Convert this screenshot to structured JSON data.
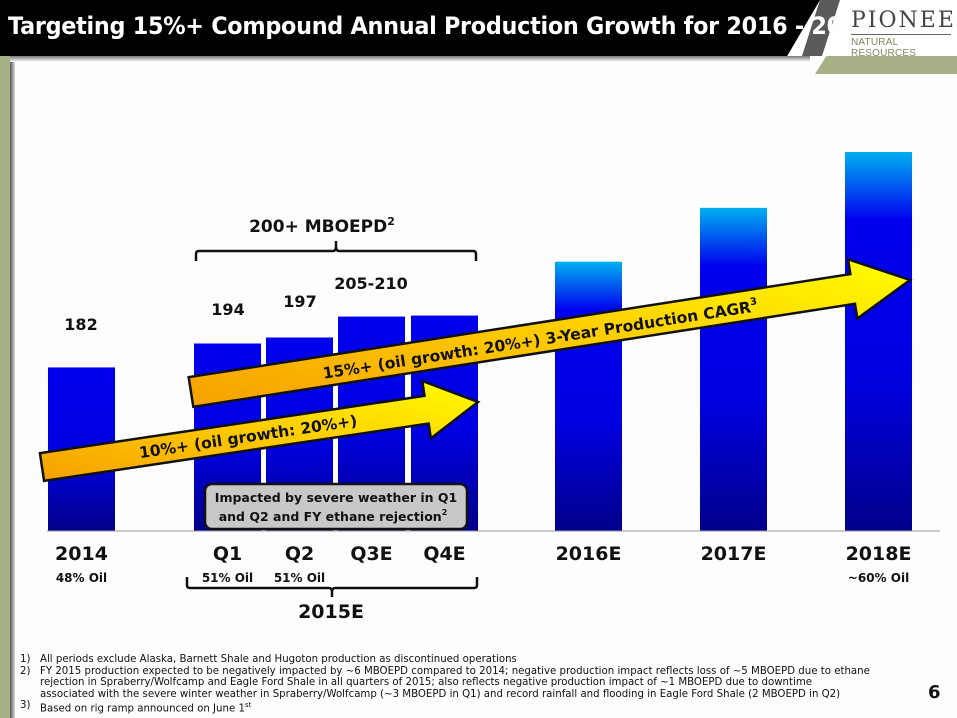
{
  "header": {
    "title": "Targeting 15%+ Compound Annual Production Growth for 2016 - 2018",
    "title_footnote": "1",
    "logo_main": "PIONEER",
    "logo_sub": "NATURAL RESOURCES"
  },
  "colors": {
    "bar_solid": "#0000ee",
    "bar_dark": "#00008a",
    "bar_light_top": "#00b0f0",
    "arrow_yellow": "#ffff00",
    "arrow_orange": "#f5a000",
    "olive": "#a8b088",
    "callout_fill": "#c8c8c8"
  },
  "chart_data": {
    "type": "bar",
    "title": "Targeting 15%+ Compound Annual Production Growth for 2016 - 2018",
    "ylabel": "MBOEPD",
    "categories": [
      "2014",
      "Q1",
      "Q2",
      "Q3E",
      "Q4E",
      "2016E",
      "2017E",
      "2018E"
    ],
    "values": [
      182,
      194,
      197,
      207.5,
      208,
      235,
      262,
      290
    ],
    "value_labels": [
      "182",
      "194",
      "197",
      "205-210",
      "",
      "",
      "",
      ""
    ],
    "estimated_unlabeled": [
      false,
      false,
      false,
      false,
      false,
      true,
      true,
      true
    ],
    "oil_share_labels": [
      "48% Oil",
      "51% Oil",
      "51% Oil",
      "",
      "",
      "",
      "",
      "~60% Oil"
    ],
    "ylim": [
      100,
      300
    ],
    "grid": false,
    "group_bracket_top": {
      "label": "200+ MBOEPD",
      "footnote": "2",
      "covers": [
        "Q1",
        "Q2",
        "Q3E",
        "Q4E"
      ]
    },
    "group_bracket_bottom": {
      "label": "2015E",
      "covers": [
        "Q1",
        "Q2",
        "Q3E",
        "Q4E"
      ]
    },
    "arrows": [
      {
        "label": "10%+ (oil growth: 20%+)",
        "from": "2014",
        "to": "Q4E"
      },
      {
        "label": "15%+ (oil growth: 20%+) 3-Year Production CAGR",
        "footnote": "3",
        "from": "Q1",
        "to": "2018E"
      }
    ],
    "callout": {
      "line1": "Impacted by severe weather in Q1",
      "line2": "and Q2 and FY ethane rejection",
      "footnote": "2"
    }
  },
  "footnotes": [
    {
      "num": "1)",
      "lines": [
        "All periods exclude Alaska, Barnett Shale and Hugoton production as discontinued operations"
      ]
    },
    {
      "num": "2)",
      "lines": [
        "FY 2015 production expected to be negatively impacted by ~6 MBOEPD compared to 2014; negative production impact reflects loss of ~5 MBOEPD due to ethane",
        "rejection in Spraberry/Wolfcamp and Eagle Ford Shale in all quarters of 2015; also reflects negative production impact of ~1 MBOEPD due to downtime",
        "associated with the severe winter weather in Spraberry/Wolfcamp (~3 MBOEPD in Q1) and record rainfall and flooding in Eagle Ford Shale (2 MBOEPD in Q2)"
      ]
    },
    {
      "num": "3)",
      "lines": [
        "Based on rig ramp announced on June 1"
      ],
      "sup": "st"
    }
  ],
  "page_number": "6"
}
